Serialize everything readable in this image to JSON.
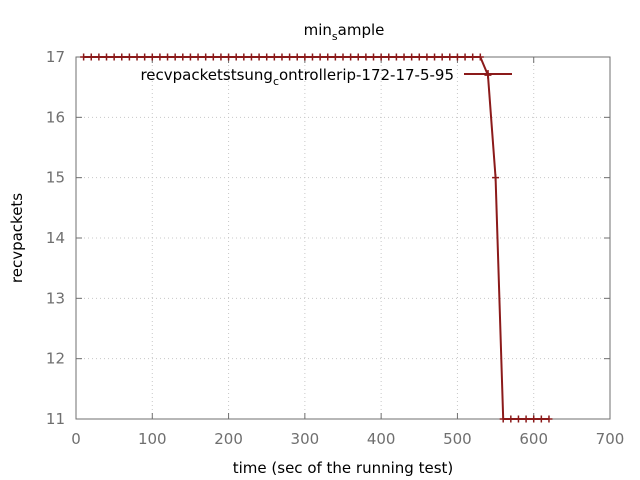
{
  "chart_data": {
    "type": "line",
    "title": "min_sample",
    "title_base": "min",
    "title_sub": "s",
    "title_rest": "ample",
    "xlabel": "time (sec of the running test)",
    "ylabel": "recvpackets",
    "xlim": [
      0,
      700
    ],
    "ylim": [
      11,
      17
    ],
    "xticks": [
      0,
      100,
      200,
      300,
      400,
      500,
      600,
      700
    ],
    "yticks": [
      11,
      12,
      13,
      14,
      15,
      16,
      17
    ],
    "grid": true,
    "legend_position": "top-right",
    "series": [
      {
        "name": "recvpackets_tsung_controller_ip-172-17-5-95",
        "legend_parts": [
          "recvpackets",
          "tsung",
          "c",
          "ontroller",
          "ip-172-17-5-95"
        ],
        "color": "#8b1a1a",
        "x": [
          10,
          20,
          30,
          40,
          50,
          60,
          70,
          80,
          90,
          100,
          110,
          120,
          130,
          140,
          150,
          160,
          170,
          180,
          190,
          200,
          210,
          220,
          230,
          240,
          250,
          260,
          270,
          280,
          290,
          300,
          310,
          320,
          330,
          340,
          350,
          360,
          370,
          380,
          390,
          400,
          410,
          420,
          430,
          440,
          450,
          460,
          470,
          480,
          490,
          500,
          510,
          520,
          530,
          540,
          550,
          560,
          570,
          580,
          590,
          600,
          610,
          620
        ],
        "y": [
          17,
          17,
          17,
          17,
          17,
          17,
          17,
          17,
          17,
          17,
          17,
          17,
          17,
          17,
          17,
          17,
          17,
          17,
          17,
          17,
          17,
          17,
          17,
          17,
          17,
          17,
          17,
          17,
          17,
          17,
          17,
          17,
          17,
          17,
          17,
          17,
          17,
          17,
          17,
          17,
          17,
          17,
          17,
          17,
          17,
          17,
          17,
          17,
          17,
          17,
          17,
          17,
          17,
          16.7,
          15,
          11,
          11,
          11,
          11,
          11,
          11,
          11
        ]
      }
    ]
  }
}
